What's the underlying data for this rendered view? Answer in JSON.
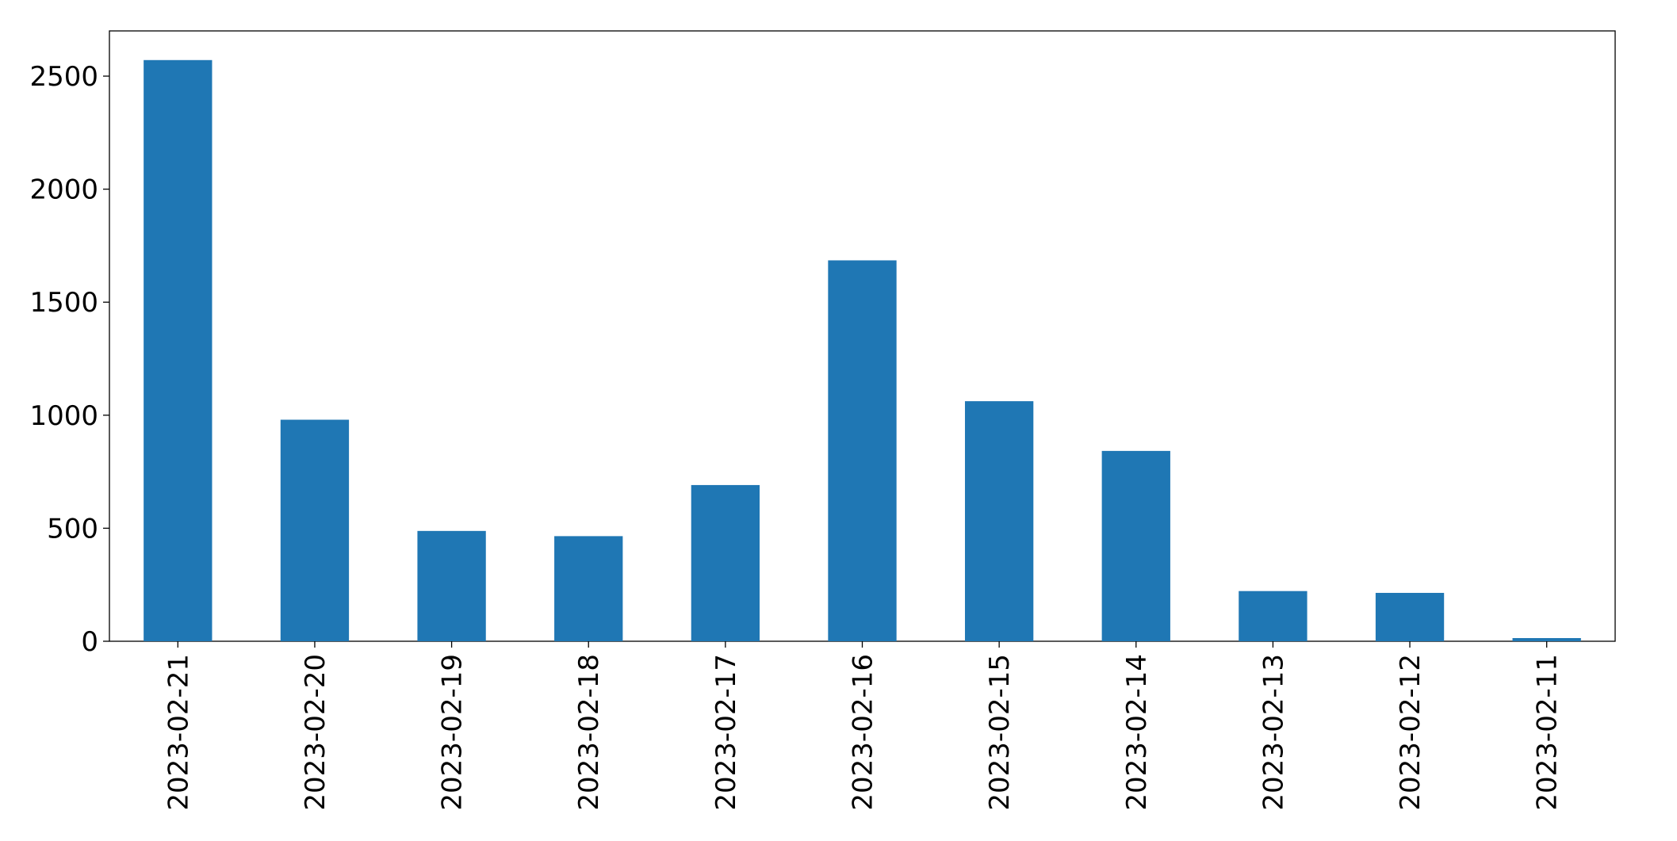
{
  "chart_data": {
    "type": "bar",
    "categories": [
      "2023-02-21",
      "2023-02-20",
      "2023-02-19",
      "2023-02-18",
      "2023-02-17",
      "2023-02-16",
      "2023-02-15",
      "2023-02-14",
      "2023-02-13",
      "2023-02-12",
      "2023-02-11"
    ],
    "values": [
      2571,
      980,
      488,
      465,
      691,
      1685,
      1062,
      842,
      222,
      214,
      14
    ],
    "color": "#1f77b4",
    "ylim": [
      0,
      2700
    ],
    "yticks": [
      0,
      500,
      1000,
      1500,
      2000,
      2500
    ],
    "grid": false
  }
}
